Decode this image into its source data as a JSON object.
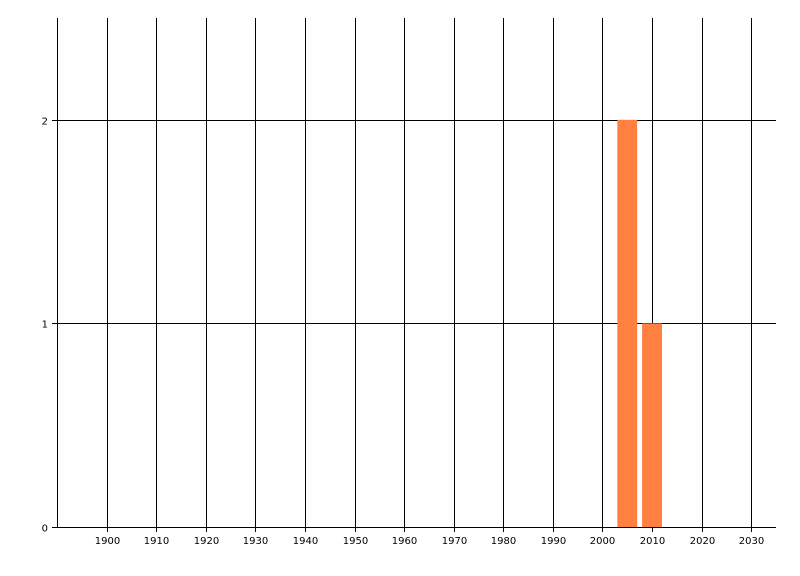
{
  "chart_data": {
    "type": "bar",
    "title": "",
    "xlabel": "",
    "ylabel": "",
    "x": [
      2005,
      2010
    ],
    "values": [
      2,
      1
    ],
    "bar_width_years": 4,
    "xlim": [
      1890,
      2035
    ],
    "ylim": [
      0,
      2.5
    ],
    "x_ticks": [
      1900,
      1910,
      1920,
      1930,
      1940,
      1950,
      1960,
      1970,
      1980,
      1990,
      2000,
      2010,
      2020,
      2030
    ],
    "y_ticks": [
      0,
      1,
      2
    ],
    "grid": true,
    "legend": "none",
    "bar_color": "#FF8040",
    "grid_color": "#000000"
  }
}
